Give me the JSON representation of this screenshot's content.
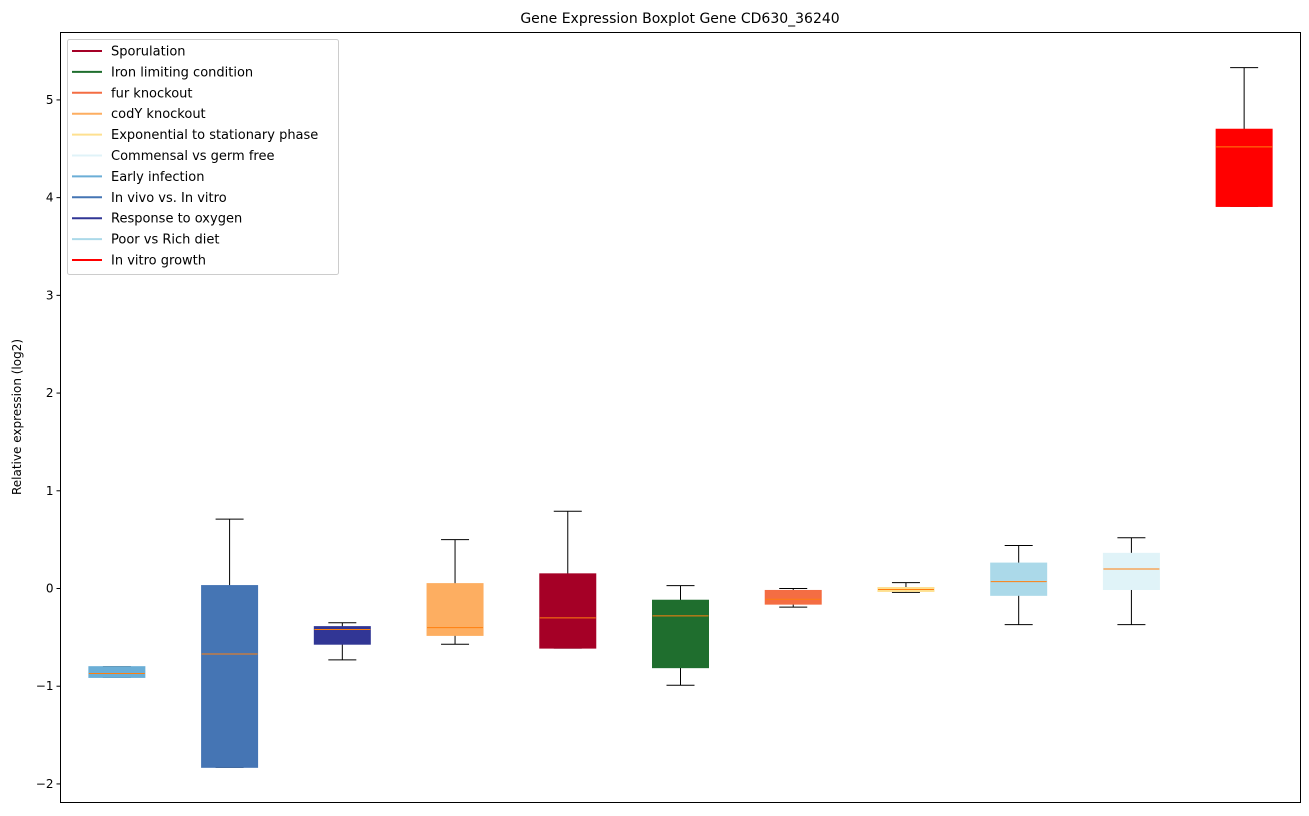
{
  "chart_data": {
    "type": "boxplot",
    "title": "Gene Expression Boxplot Gene CD630_36240",
    "xlabel": "",
    "ylabel": "Relative expression (log2)",
    "ylim": [
      -2.19,
      5.69
    ],
    "yticks": [
      -2,
      -1,
      0,
      1,
      2,
      3,
      4,
      5
    ],
    "ytick_labels": [
      "−2",
      "−1",
      "0",
      "1",
      "2",
      "3",
      "4",
      "5"
    ],
    "grid": false,
    "legend_position": "top-left",
    "legend": [
      {
        "label": "Sporulation",
        "color": "#a50026"
      },
      {
        "label": "Iron limiting condition",
        "color": "#1f6e2e"
      },
      {
        "label": "fur knockout",
        "color": "#f46d43"
      },
      {
        "label": "codY knockout",
        "color": "#fdae61"
      },
      {
        "label": "Exponential to stationary phase",
        "color": "#fee090"
      },
      {
        "label": "Commensal vs germ free",
        "color": "#e0f3f8"
      },
      {
        "label": "Early infection",
        "color": "#6baed6"
      },
      {
        "label": "In vivo vs. In vitro",
        "color": "#4575b4"
      },
      {
        "label": "Response to oxygen",
        "color": "#313695"
      },
      {
        "label": "Poor vs Rich diet",
        "color": "#abd9e9"
      },
      {
        "label": "In vitro growth",
        "color": "#ff0000"
      }
    ],
    "boxes": [
      {
        "color": "#6baed6",
        "whislo": -0.91,
        "q1": -0.91,
        "median": -0.87,
        "q3": -0.8,
        "whishi": -0.8
      },
      {
        "color": "#4575b4",
        "whislo": -1.83,
        "q1": -1.83,
        "median": -0.67,
        "q3": 0.03,
        "whishi": 0.71
      },
      {
        "color": "#313695",
        "whislo": -0.73,
        "q1": -0.57,
        "median": -0.42,
        "q3": -0.39,
        "whishi": -0.35
      },
      {
        "color": "#fdae61",
        "whislo": -0.57,
        "q1": -0.48,
        "median": -0.4,
        "q3": 0.05,
        "whishi": 0.5
      },
      {
        "color": "#a50026",
        "whislo": -0.61,
        "q1": -0.61,
        "median": -0.3,
        "q3": 0.15,
        "whishi": 0.79
      },
      {
        "color": "#1f6e2e",
        "whislo": -0.99,
        "q1": -0.81,
        "median": -0.28,
        "q3": -0.12,
        "whishi": 0.03
      },
      {
        "color": "#f46d43",
        "whislo": -0.19,
        "q1": -0.16,
        "median": -0.11,
        "q3": -0.02,
        "whishi": 0.0
      },
      {
        "color": "#fee090",
        "whislo": -0.04,
        "q1": -0.03,
        "median": -0.01,
        "q3": 0.01,
        "whishi": 0.06
      },
      {
        "color": "#abd9e9",
        "whislo": -0.37,
        "q1": -0.07,
        "median": 0.07,
        "q3": 0.26,
        "whishi": 0.44
      },
      {
        "color": "#e0f3f8",
        "whislo": -0.37,
        "q1": -0.01,
        "median": 0.2,
        "q3": 0.36,
        "whishi": 0.52
      },
      {
        "color": "#ff0000",
        "whislo": 3.91,
        "q1": 3.91,
        "median": 4.52,
        "q3": 4.7,
        "whishi": 5.33
      }
    ],
    "median_color": "#ff7f0e"
  }
}
